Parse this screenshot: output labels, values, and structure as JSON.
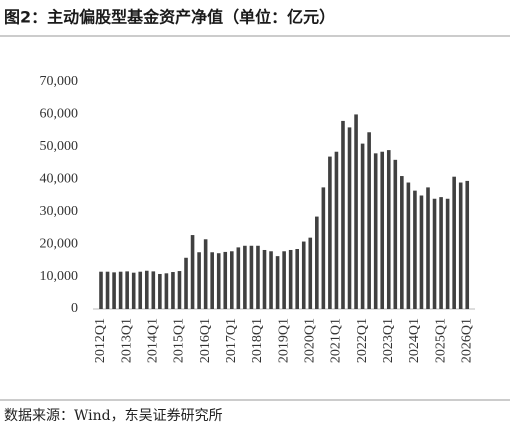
{
  "chart_data": {
    "type": "bar",
    "title": "图2：主动偏股型基金资产净值（单位：亿元）",
    "source": "数据来源：Wind，东吴证券研究所",
    "categories": [
      "2012Q1",
      null,
      null,
      null,
      "2013Q1",
      null,
      null,
      null,
      "2014Q1",
      null,
      null,
      null,
      "2015Q1",
      null,
      null,
      null,
      "2016Q1",
      null,
      null,
      null,
      "2017Q1",
      null,
      null,
      null,
      "2018Q1",
      null,
      null,
      null,
      "2019Q1",
      null,
      null,
      null,
      "2020Q1",
      null,
      null,
      null,
      "2021Q1",
      null,
      null,
      null,
      "2022Q1",
      null,
      null,
      null,
      "2023Q1",
      null,
      null,
      null,
      "2024Q1",
      null,
      null,
      null,
      "2025Q1",
      null,
      null,
      null,
      "2026Q1"
    ],
    "values": [
      11500,
      11500,
      11300,
      11500,
      11600,
      11200,
      11500,
      11800,
      11600,
      10800,
      11000,
      11400,
      11700,
      15800,
      22800,
      17500,
      21500,
      17500,
      17200,
      17600,
      17800,
      19000,
      19500,
      19500,
      19500,
      18200,
      17800,
      16300,
      17800,
      18200,
      18500,
      20800,
      22000,
      28500,
      37500,
      47000,
      48500,
      58000,
      56000,
      60000,
      51000,
      54500,
      48000,
      48500,
      49000,
      46000,
      41000,
      39000,
      36500,
      35000,
      37500,
      34000,
      34500,
      34000,
      40800,
      39000,
      39500
    ],
    "color": "#404040",
    "ylim": [
      0,
      70000
    ],
    "yticks": [
      0,
      {
        "value": 10000,
        "label": "10,000"
      },
      {
        "value": 20000,
        "label": "20,000"
      },
      {
        "value": 30000,
        "label": "30,000"
      },
      {
        "value": 40000,
        "label": "40,000"
      },
      {
        "value": 50000,
        "label": "50,000"
      },
      {
        "value": 60000,
        "label": "60,000"
      },
      {
        "value": 70000,
        "label": "70,000"
      }
    ],
    "grid": false
  }
}
